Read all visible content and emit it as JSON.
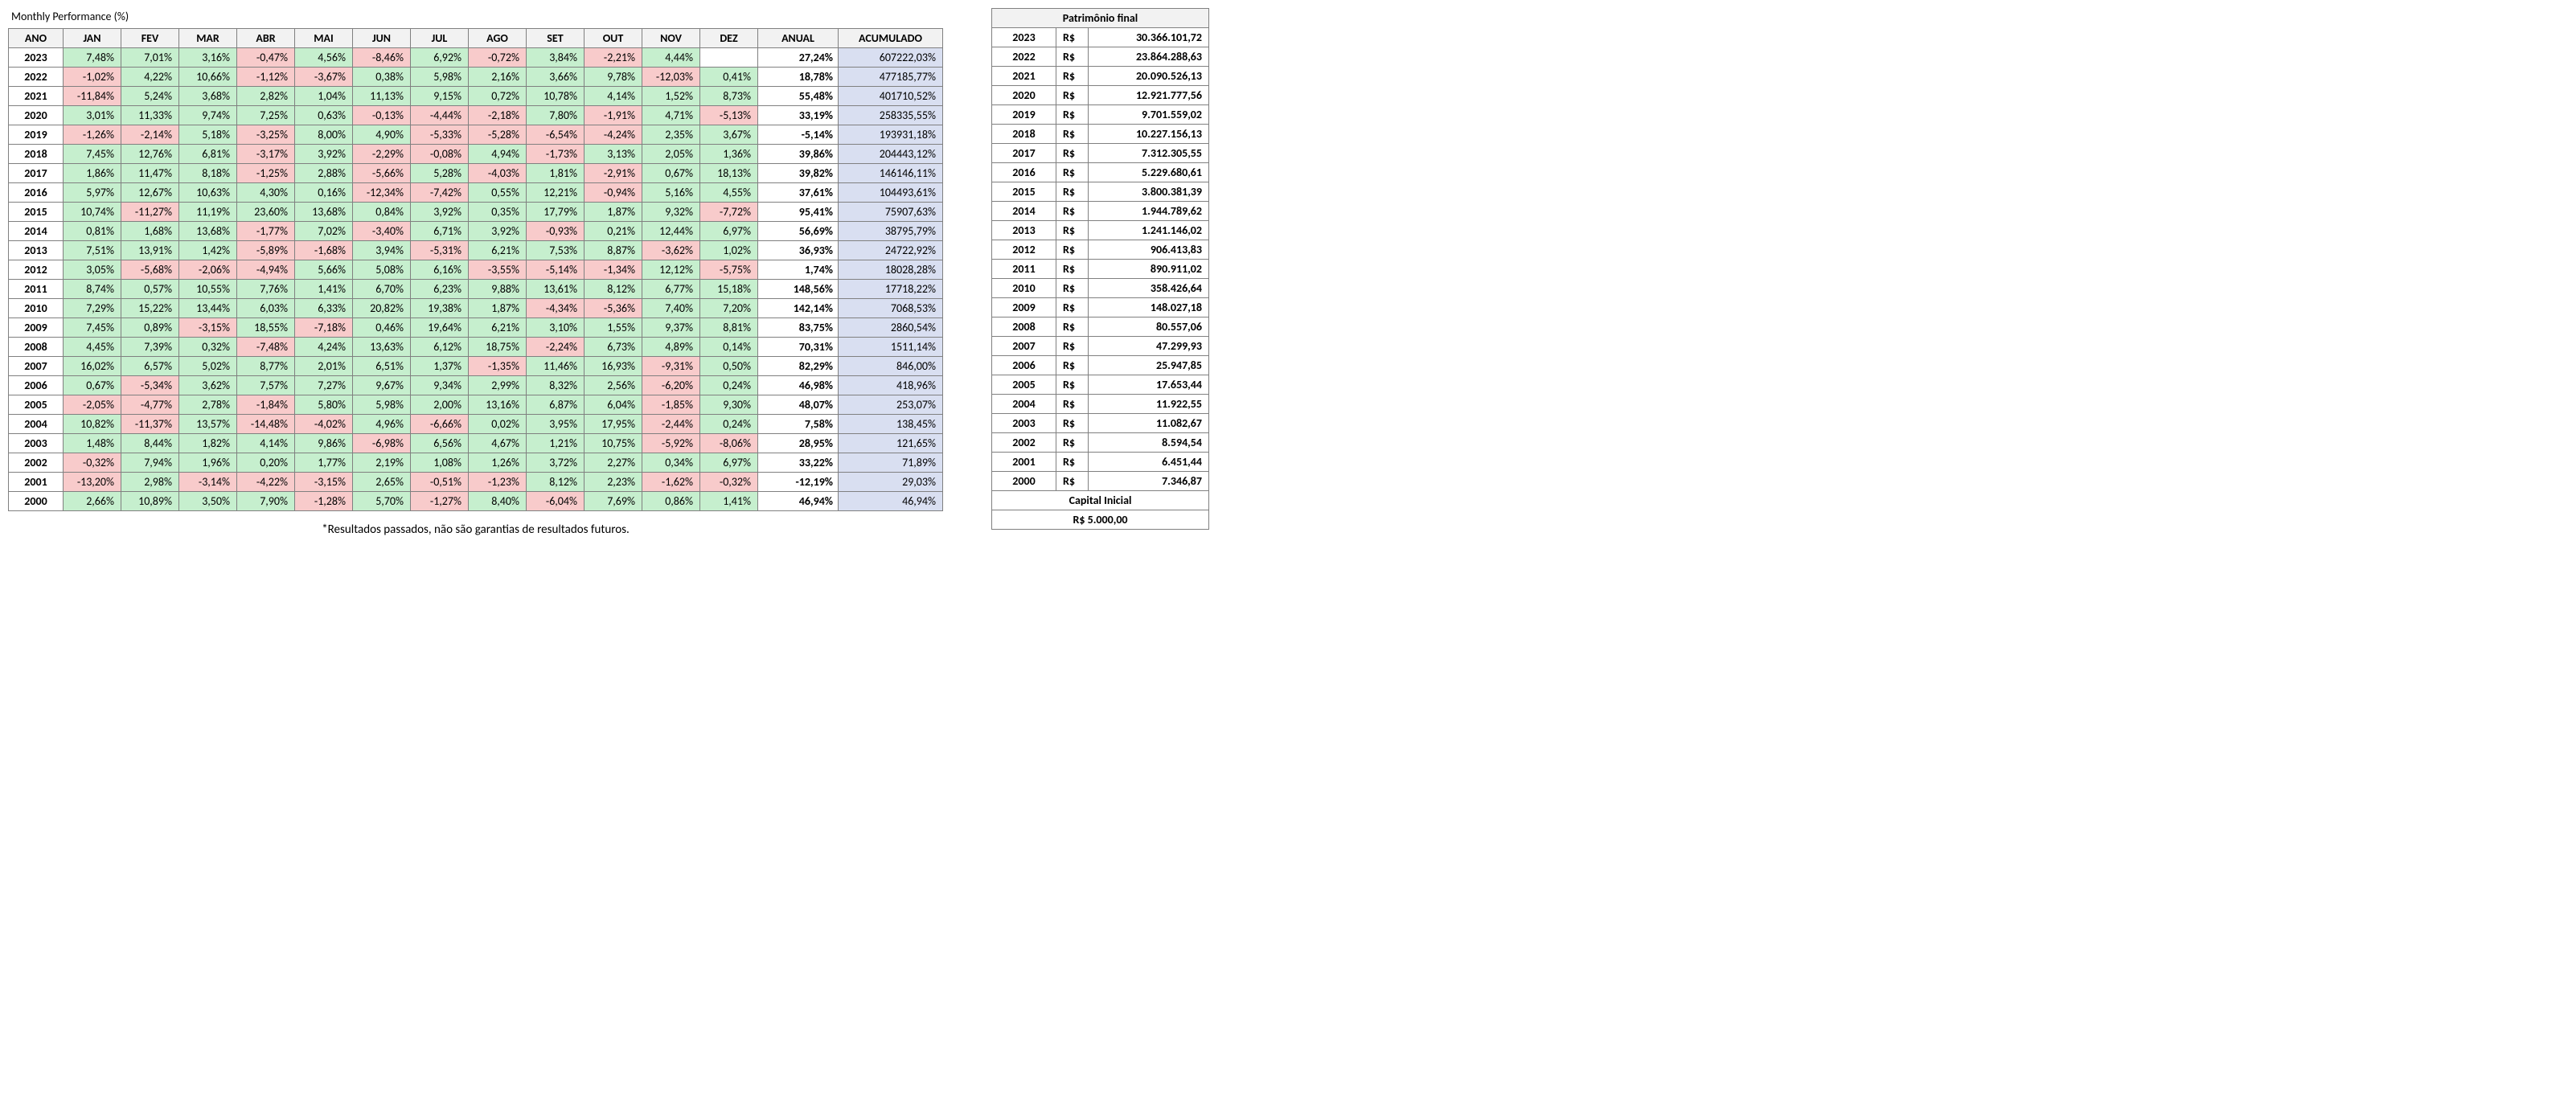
{
  "title": "Monthly Performance (%)",
  "footnote": "*Resultados passados, não são garantias de resultados futuros.",
  "colors": {
    "positive_bg": "#c6efce",
    "negative_bg": "#f8cbcb",
    "cum_bg": "#d9dff1",
    "header_bg": "#f2f2f2",
    "border": "#808080",
    "text": "#000000",
    "background": "#ffffff"
  },
  "performance": {
    "headers": [
      "ANO",
      "JAN",
      "FEV",
      "MAR",
      "ABR",
      "MAI",
      "JUN",
      "JUL",
      "AGO",
      "SET",
      "OUT",
      "NOV",
      "DEZ",
      "ANUAL",
      "ACUMULADO"
    ],
    "rows": [
      {
        "year": "2023",
        "months": [
          "7,48%",
          "7,01%",
          "3,16%",
          "-0,47%",
          "4,56%",
          "-8,46%",
          "6,92%",
          "-0,72%",
          "3,84%",
          "-2,21%",
          "4,44%",
          ""
        ],
        "annual": "27,24%",
        "cum": "607222,03%"
      },
      {
        "year": "2022",
        "months": [
          "-1,02%",
          "4,22%",
          "10,66%",
          "-1,12%",
          "-3,67%",
          "0,38%",
          "5,98%",
          "2,16%",
          "3,66%",
          "9,78%",
          "-12,03%",
          "0,41%"
        ],
        "annual": "18,78%",
        "cum": "477185,77%"
      },
      {
        "year": "2021",
        "months": [
          "-11,84%",
          "5,24%",
          "3,68%",
          "2,82%",
          "1,04%",
          "11,13%",
          "9,15%",
          "0,72%",
          "10,78%",
          "4,14%",
          "1,52%",
          "8,73%"
        ],
        "annual": "55,48%",
        "cum": "401710,52%"
      },
      {
        "year": "2020",
        "months": [
          "3,01%",
          "11,33%",
          "9,74%",
          "7,25%",
          "0,63%",
          "-0,13%",
          "-4,44%",
          "-2,18%",
          "7,80%",
          "-1,91%",
          "4,71%",
          "-5,13%"
        ],
        "annual": "33,19%",
        "cum": "258335,55%"
      },
      {
        "year": "2019",
        "months": [
          "-1,26%",
          "-2,14%",
          "5,18%",
          "-3,25%",
          "8,00%",
          "4,90%",
          "-5,33%",
          "-5,28%",
          "-6,54%",
          "-4,24%",
          "2,35%",
          "3,67%"
        ],
        "annual": "-5,14%",
        "cum": "193931,18%"
      },
      {
        "year": "2018",
        "months": [
          "7,45%",
          "12,76%",
          "6,81%",
          "-3,17%",
          "3,92%",
          "-2,29%",
          "-0,08%",
          "4,94%",
          "-1,73%",
          "3,13%",
          "2,05%",
          "1,36%"
        ],
        "annual": "39,86%",
        "cum": "204443,12%"
      },
      {
        "year": "2017",
        "months": [
          "1,86%",
          "11,47%",
          "8,18%",
          "-1,25%",
          "2,88%",
          "-5,66%",
          "5,28%",
          "-4,03%",
          "1,81%",
          "-2,91%",
          "0,67%",
          "18,13%"
        ],
        "annual": "39,82%",
        "cum": "146146,11%"
      },
      {
        "year": "2016",
        "months": [
          "5,97%",
          "12,67%",
          "10,63%",
          "4,30%",
          "0,16%",
          "-12,34%",
          "-7,42%",
          "0,55%",
          "12,21%",
          "-0,94%",
          "5,16%",
          "4,55%"
        ],
        "annual": "37,61%",
        "cum": "104493,61%"
      },
      {
        "year": "2015",
        "months": [
          "10,74%",
          "-11,27%",
          "11,19%",
          "23,60%",
          "13,68%",
          "0,84%",
          "3,92%",
          "0,35%",
          "17,79%",
          "1,87%",
          "9,32%",
          "-7,72%"
        ],
        "annual": "95,41%",
        "cum": "75907,63%"
      },
      {
        "year": "2014",
        "months": [
          "0,81%",
          "1,68%",
          "13,68%",
          "-1,77%",
          "7,02%",
          "-3,40%",
          "6,71%",
          "3,92%",
          "-0,93%",
          "0,21%",
          "12,44%",
          "6,97%"
        ],
        "annual": "56,69%",
        "cum": "38795,79%"
      },
      {
        "year": "2013",
        "months": [
          "7,51%",
          "13,91%",
          "1,42%",
          "-5,89%",
          "-1,68%",
          "3,94%",
          "-5,31%",
          "6,21%",
          "7,53%",
          "8,87%",
          "-3,62%",
          "1,02%"
        ],
        "annual": "36,93%",
        "cum": "24722,92%"
      },
      {
        "year": "2012",
        "months": [
          "3,05%",
          "-5,68%",
          "-2,06%",
          "-4,94%",
          "5,66%",
          "5,08%",
          "6,16%",
          "-3,55%",
          "-5,14%",
          "-1,34%",
          "12,12%",
          "-5,75%"
        ],
        "annual": "1,74%",
        "cum": "18028,28%"
      },
      {
        "year": "2011",
        "months": [
          "8,74%",
          "0,57%",
          "10,55%",
          "7,76%",
          "1,41%",
          "6,70%",
          "6,23%",
          "9,88%",
          "13,61%",
          "8,12%",
          "6,77%",
          "15,18%"
        ],
        "annual": "148,56%",
        "cum": "17718,22%"
      },
      {
        "year": "2010",
        "months": [
          "7,29%",
          "15,22%",
          "13,44%",
          "6,03%",
          "6,33%",
          "20,82%",
          "19,38%",
          "1,87%",
          "-4,34%",
          "-5,36%",
          "7,40%",
          "7,20%"
        ],
        "annual": "142,14%",
        "cum": "7068,53%"
      },
      {
        "year": "2009",
        "months": [
          "7,45%",
          "0,89%",
          "-3,15%",
          "18,55%",
          "-7,18%",
          "0,46%",
          "19,64%",
          "6,21%",
          "3,10%",
          "1,55%",
          "9,37%",
          "8,81%"
        ],
        "annual": "83,75%",
        "cum": "2860,54%"
      },
      {
        "year": "2008",
        "months": [
          "4,45%",
          "7,39%",
          "0,32%",
          "-7,48%",
          "4,24%",
          "13,63%",
          "6,12%",
          "18,75%",
          "-2,24%",
          "6,73%",
          "4,89%",
          "0,14%"
        ],
        "annual": "70,31%",
        "cum": "1511,14%"
      },
      {
        "year": "2007",
        "months": [
          "16,02%",
          "6,57%",
          "5,02%",
          "8,77%",
          "2,01%",
          "6,51%",
          "1,37%",
          "-1,35%",
          "11,46%",
          "16,93%",
          "-9,31%",
          "0,50%"
        ],
        "annual": "82,29%",
        "cum": "846,00%"
      },
      {
        "year": "2006",
        "months": [
          "0,67%",
          "-5,34%",
          "3,62%",
          "7,57%",
          "7,27%",
          "9,67%",
          "9,34%",
          "2,99%",
          "8,32%",
          "2,56%",
          "-6,20%",
          "0,24%"
        ],
        "annual": "46,98%",
        "cum": "418,96%"
      },
      {
        "year": "2005",
        "months": [
          "-2,05%",
          "-4,77%",
          "2,78%",
          "-1,84%",
          "5,80%",
          "5,98%",
          "2,00%",
          "13,16%",
          "6,87%",
          "6,04%",
          "-1,85%",
          "9,30%"
        ],
        "annual": "48,07%",
        "cum": "253,07%"
      },
      {
        "year": "2004",
        "months": [
          "10,82%",
          "-11,37%",
          "13,57%",
          "-14,48%",
          "-4,02%",
          "4,96%",
          "-6,66%",
          "0,02%",
          "3,95%",
          "17,95%",
          "-2,44%",
          "0,24%"
        ],
        "annual": "7,58%",
        "cum": "138,45%"
      },
      {
        "year": "2003",
        "months": [
          "1,48%",
          "8,44%",
          "1,82%",
          "4,14%",
          "9,86%",
          "-6,98%",
          "6,56%",
          "4,67%",
          "1,21%",
          "10,75%",
          "-5,92%",
          "-8,06%"
        ],
        "annual": "28,95%",
        "cum": "121,65%"
      },
      {
        "year": "2002",
        "months": [
          "-0,32%",
          "7,94%",
          "1,96%",
          "0,20%",
          "1,77%",
          "2,19%",
          "1,08%",
          "1,26%",
          "3,72%",
          "2,27%",
          "0,34%",
          "6,97%"
        ],
        "annual": "33,22%",
        "cum": "71,89%"
      },
      {
        "year": "2001",
        "months": [
          "-13,20%",
          "2,98%",
          "-3,14%",
          "-4,22%",
          "-3,15%",
          "2,65%",
          "-0,51%",
          "-1,23%",
          "8,12%",
          "2,23%",
          "-1,62%",
          "-0,32%"
        ],
        "annual": "-12,19%",
        "cum": "29,03%"
      },
      {
        "year": "2000",
        "months": [
          "2,66%",
          "10,89%",
          "3,50%",
          "7,90%",
          "-1,28%",
          "5,70%",
          "-1,27%",
          "8,40%",
          "-6,04%",
          "7,69%",
          "0,86%",
          "1,41%"
        ],
        "annual": "46,94%",
        "cum": "46,94%"
      }
    ]
  },
  "patrimonio": {
    "header": "Patrimônio final",
    "currency": "R$",
    "rows": [
      {
        "year": "2023",
        "value": "30.366.101,72"
      },
      {
        "year": "2022",
        "value": "23.864.288,63"
      },
      {
        "year": "2021",
        "value": "20.090.526,13"
      },
      {
        "year": "2020",
        "value": "12.921.777,56"
      },
      {
        "year": "2019",
        "value": "9.701.559,02"
      },
      {
        "year": "2018",
        "value": "10.227.156,13"
      },
      {
        "year": "2017",
        "value": "7.312.305,55"
      },
      {
        "year": "2016",
        "value": "5.229.680,61"
      },
      {
        "year": "2015",
        "value": "3.800.381,39"
      },
      {
        "year": "2014",
        "value": "1.944.789,62"
      },
      {
        "year": "2013",
        "value": "1.241.146,02"
      },
      {
        "year": "2012",
        "value": "906.413,83"
      },
      {
        "year": "2011",
        "value": "890.911,02"
      },
      {
        "year": "2010",
        "value": "358.426,64"
      },
      {
        "year": "2009",
        "value": "148.027,18"
      },
      {
        "year": "2008",
        "value": "80.557,06"
      },
      {
        "year": "2007",
        "value": "47.299,93"
      },
      {
        "year": "2006",
        "value": "25.947,85"
      },
      {
        "year": "2005",
        "value": "17.653,44"
      },
      {
        "year": "2004",
        "value": "11.922,55"
      },
      {
        "year": "2003",
        "value": "11.082,67"
      },
      {
        "year": "2002",
        "value": "8.594,54"
      },
      {
        "year": "2001",
        "value": "6.451,44"
      },
      {
        "year": "2000",
        "value": "7.346,87"
      }
    ],
    "capital_label": "Capital Inicial",
    "capital_value": "R$ 5.000,00"
  }
}
